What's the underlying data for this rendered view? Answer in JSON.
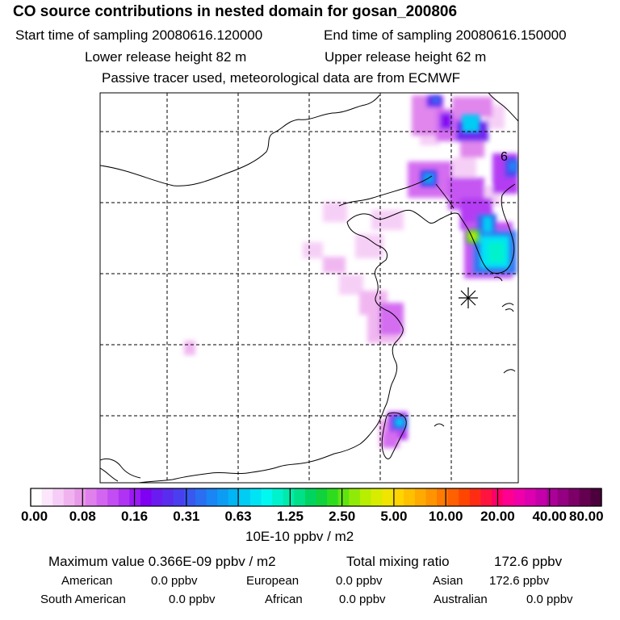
{
  "header": {
    "title": "CO  source contributions in nested domain for gosan_200806",
    "start_label": "Start time of sampling 20080616.120000",
    "end_label": "End time of sampling 20080616.150000",
    "lower_label": "Lower release height   82 m",
    "upper_label": "Upper release height   62 m",
    "note": "Passive tracer used, meteorological data are from ECMWF"
  },
  "map": {
    "corner_label": "6",
    "receptor_symbol": "asterisk-receptor"
  },
  "colorbar": {
    "ticks": [
      "0.00",
      "0.08",
      "0.16",
      "0.31",
      "0.63",
      "1.25",
      "2.50",
      "5.00",
      "10.00",
      "20.00",
      "40.00",
      "80.00"
    ],
    "unit": "10E-10 ppbv / m2",
    "colors": [
      "#ffffff",
      "#fbe6fb",
      "#f6cdf6",
      "#f0b3f0",
      "#e89ae8",
      "#df80ec",
      "#d266f0",
      "#c24df2",
      "#b033f3",
      "#9a1af3",
      "#7f00f2",
      "#6a1bf0",
      "#5a2dee",
      "#4a3ff0",
      "#3858ee",
      "#2a6ef2",
      "#1a85f4",
      "#0d9cf4",
      "#00b5f4",
      "#00ccf4",
      "#00e3f4",
      "#00f8f0",
      "#00f2cc",
      "#00eaaa",
      "#00e088",
      "#00d460",
      "#10d23c",
      "#2edc1e",
      "#60e410",
      "#90ea08",
      "#b8ee00",
      "#d8ec00",
      "#f0e400",
      "#ffd400",
      "#ffc000",
      "#ffaa00",
      "#ff9300",
      "#ff7a00",
      "#ff6000",
      "#ff4600",
      "#ff2c14",
      "#ff1440",
      "#ff0068",
      "#ff0090",
      "#f000a8",
      "#dc00b0",
      "#c400aa",
      "#ac0098",
      "#940082",
      "#7c0068",
      "#640050",
      "#4c003c"
    ]
  },
  "stats": {
    "max_label": "Maximum value  0.366E-09 ppbv / m2",
    "total_label": "Total mixing ratio",
    "total_value": "172.6 ppbv"
  },
  "regions": [
    {
      "name": "American",
      "value": "0.0 ppbv"
    },
    {
      "name": "European",
      "value": "0.0 ppbv"
    },
    {
      "name": "Asian",
      "value": "172.6 ppbv"
    },
    {
      "name": "South American",
      "value": "0.0 ppbv"
    },
    {
      "name": "African",
      "value": "0.0 ppbv"
    },
    {
      "name": "Australian",
      "value": "0.0 ppbv"
    }
  ]
}
